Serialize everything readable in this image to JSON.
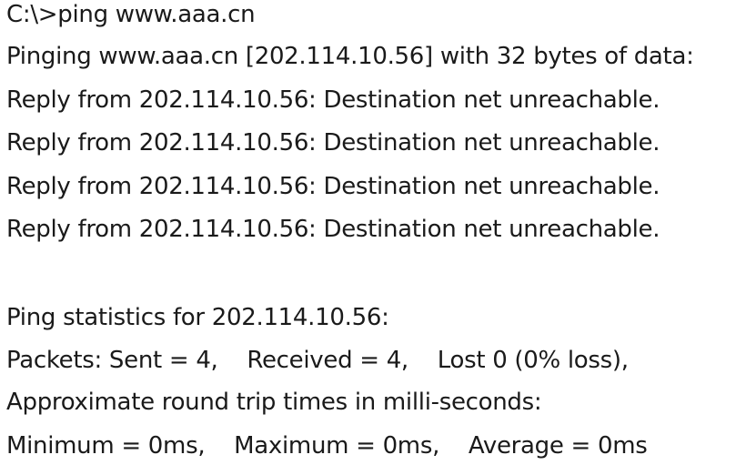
{
  "console": {
    "lines": [
      "C:\\>ping www.aaa.cn",
      "Pinging www.aaa.cn [202.114.10.56] with 32 bytes of data:",
      "Reply from 202.114.10.56: Destination net unreachable.",
      "Reply from 202.114.10.56: Destination net unreachable.",
      "Reply from 202.114.10.56: Destination net unreachable.",
      "Reply from 202.114.10.56: Destination net unreachable.",
      "Ping statistics for 202.114.10.56:",
      "Packets: Sent = 4,    Received = 4,    Lost 0 (0% loss),",
      "Approximate round trip times in milli-seconds:",
      "Minimum = 0ms,    Maximum = 0ms,    Average = 0ms"
    ]
  },
  "colors": {
    "background": "#ffffff",
    "text": "#1a1a1a"
  }
}
